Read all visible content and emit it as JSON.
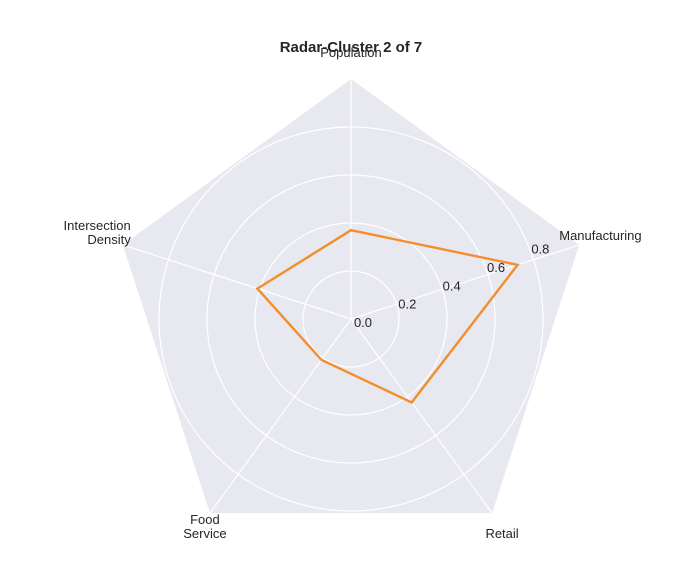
{
  "chart_data": {
    "type": "radar",
    "title": "Radar-Cluster 2 of 7",
    "axes": [
      {
        "label_lines": [
          "Population"
        ]
      },
      {
        "label_lines": [
          "Manufacturing"
        ]
      },
      {
        "label_lines": [
          "Retail"
        ]
      },
      {
        "label_lines": [
          "Food",
          "Service"
        ]
      },
      {
        "label_lines": [
          "Intersection",
          "Density"
        ]
      }
    ],
    "radial_ticks": [
      "0.0",
      "0.2",
      "0.4",
      "0.6",
      "0.8"
    ],
    "radial_tick_values": [
      0.0,
      0.2,
      0.4,
      0.6,
      0.8
    ],
    "r_range": [
      0,
      1.0
    ],
    "series": [
      {
        "values": [
          0.37,
          0.73,
          0.43,
          0.21,
          0.41
        ],
        "color": "#f28e2b"
      }
    ],
    "background_color": "#e8e8f0",
    "grid": true
  }
}
